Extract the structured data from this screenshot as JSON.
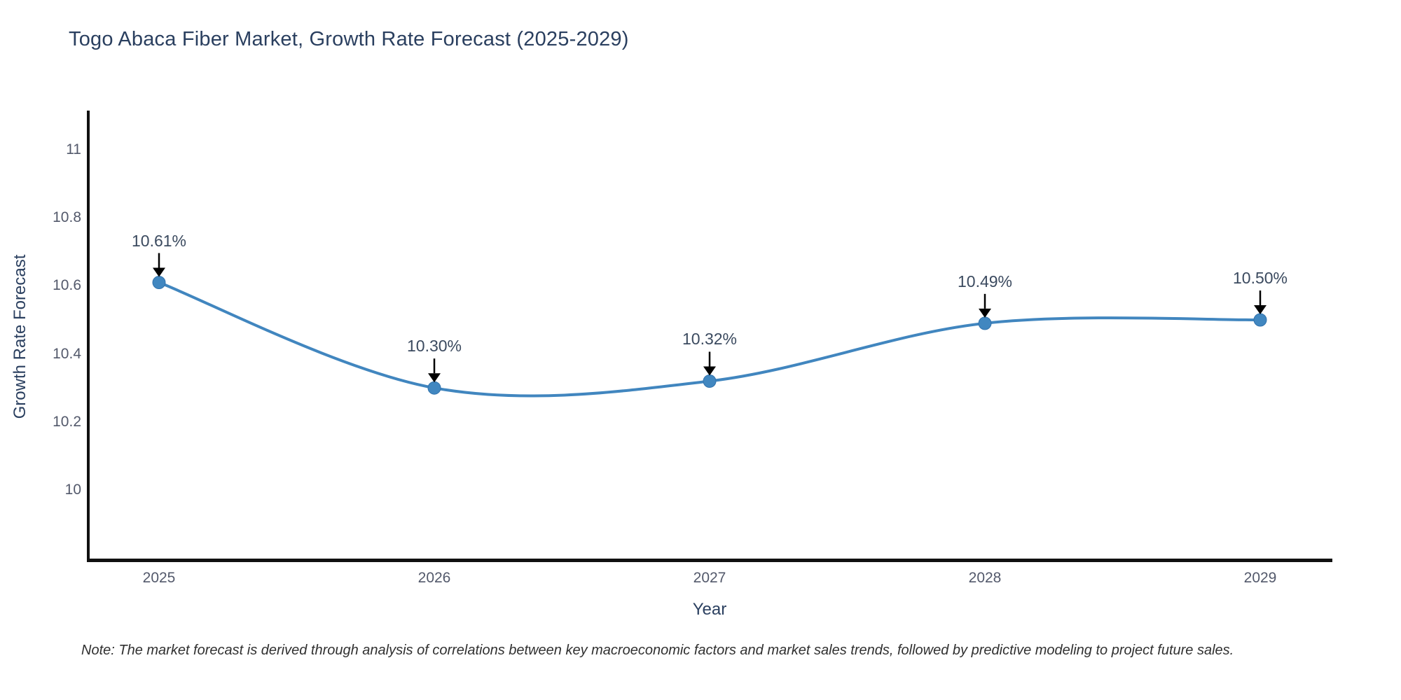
{
  "header": {
    "title": "Togo Abaca Fiber Market, Growth Rate Forecast (2025-2029)"
  },
  "chart_data": {
    "type": "line",
    "title": "Togo Abaca Fiber Market, Growth Rate Forecast (2025-2029)",
    "x": [
      "2025",
      "2026",
      "2027",
      "2028",
      "2029"
    ],
    "values": [
      10.61,
      10.3,
      10.32,
      10.49,
      10.5
    ],
    "point_labels": [
      "10.61%",
      "10.30%",
      "10.32%",
      "10.49%",
      "10.50%"
    ],
    "xlabel": "Year",
    "ylabel": "Growth Rate Forecast",
    "yticks": {
      "values": [
        11,
        10.8,
        10.6,
        10.4,
        10.2,
        10
      ],
      "labels": [
        "11",
        "10.8",
        "10.6",
        "10.4",
        "10.2",
        "10"
      ]
    },
    "ylim": [
      9.79,
      11.11
    ],
    "grid": false,
    "legend": false,
    "line_shape": "spline",
    "annotation_style": "value-labels-with-down-arrows",
    "colors": {
      "line": "#4186bf",
      "marker_fill": "#4187c0",
      "marker_edge": "#3273ad",
      "axis_line": "#111111",
      "arrow": "#000000",
      "title_text": "#2a3f5f",
      "tick_text": "#53596b",
      "annotation_text": "#3b4a5f"
    }
  },
  "footer": {
    "note": "Note: The market forecast is derived through analysis of correlations between key macroeconomic factors and market sales trends, followed by predictive modeling to project future sales."
  }
}
